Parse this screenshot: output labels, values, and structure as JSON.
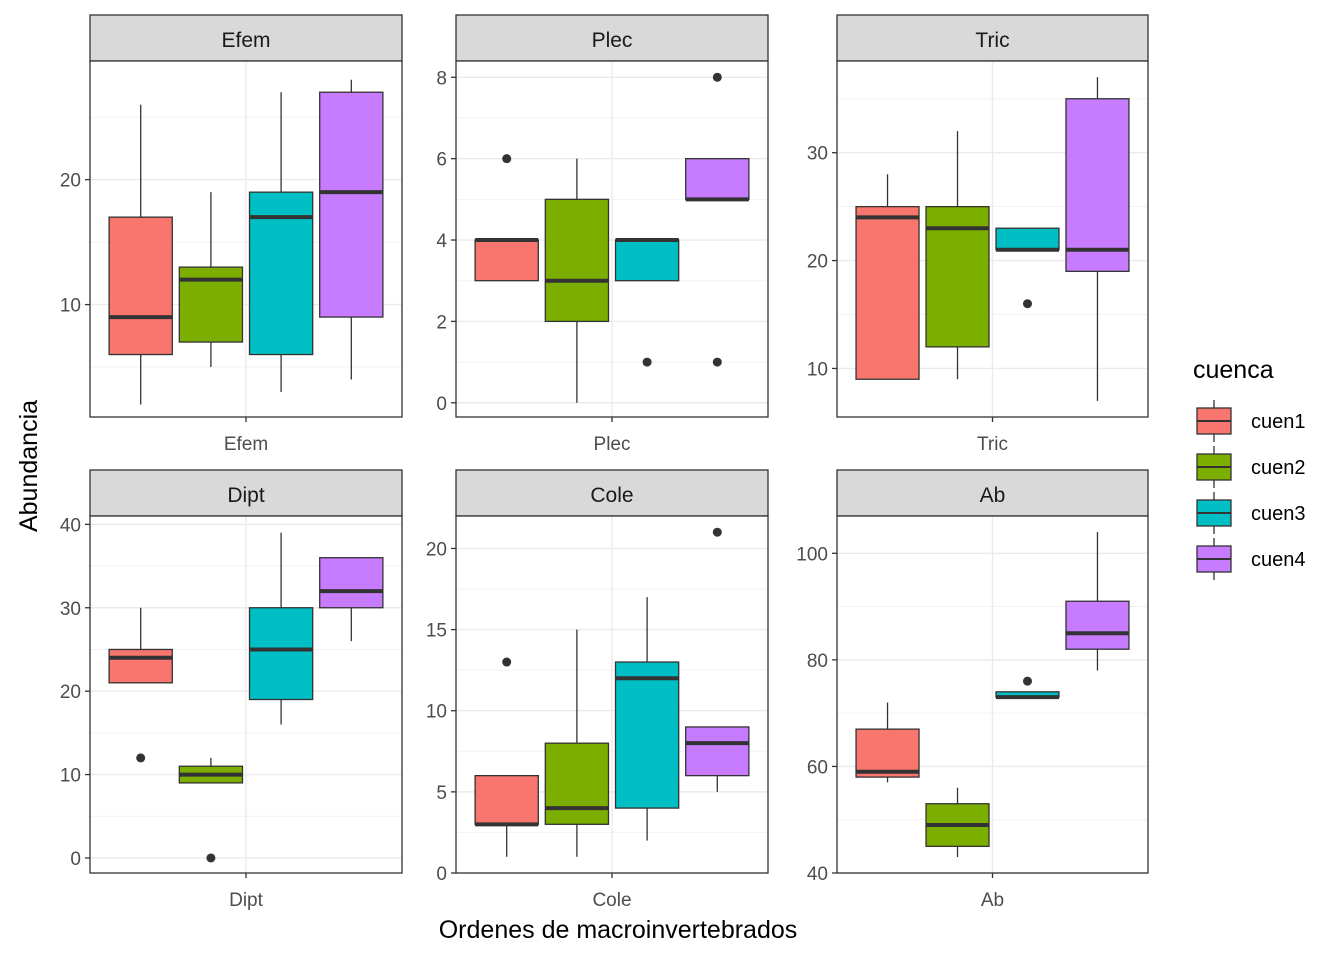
{
  "chart_data": {
    "type": "box",
    "xlabel": "Ordenes de macroinvertebrados",
    "ylabel": "Abundancia",
    "grid": true,
    "legend": {
      "title": "cuenca",
      "position": "right",
      "entries": [
        {
          "name": "cuen1",
          "color": "#F8766D"
        },
        {
          "name": "cuen2",
          "color": "#7CAE00"
        },
        {
          "name": "cuen3",
          "color": "#00BFC4"
        },
        {
          "name": "cuen4",
          "color": "#C77CFF"
        }
      ]
    },
    "panels": [
      {
        "strip": "Efem",
        "xtick": "Efem",
        "ylim": [
          1,
          29.5
        ],
        "yticks": [
          10,
          20
        ],
        "boxes": [
          {
            "series": "cuen1",
            "lower": 2,
            "q1": 6,
            "median": 9,
            "q3": 17,
            "upper": 26,
            "outliers": []
          },
          {
            "series": "cuen2",
            "lower": 5,
            "q1": 7,
            "median": 12,
            "q3": 13,
            "upper": 19,
            "outliers": []
          },
          {
            "series": "cuen3",
            "lower": 3,
            "q1": 6,
            "median": 17,
            "q3": 19,
            "upper": 27,
            "outliers": []
          },
          {
            "series": "cuen4",
            "lower": 4,
            "q1": 9,
            "median": 19,
            "q3": 27,
            "upper": 28,
            "outliers": []
          }
        ]
      },
      {
        "strip": "Plec",
        "xtick": "Plec",
        "ylim": [
          -0.35,
          8.4
        ],
        "yticks": [
          0,
          2,
          4,
          6,
          8
        ],
        "boxes": [
          {
            "series": "cuen1",
            "lower": 3,
            "q1": 3,
            "median": 4,
            "q3": 4,
            "upper": 4,
            "outliers": [
              6
            ]
          },
          {
            "series": "cuen2",
            "lower": 0,
            "q1": 2,
            "median": 3,
            "q3": 5,
            "upper": 6,
            "outliers": []
          },
          {
            "series": "cuen3",
            "lower": 3,
            "q1": 3,
            "median": 4,
            "q3": 4,
            "upper": 4,
            "outliers": [
              1
            ]
          },
          {
            "series": "cuen4",
            "lower": 5,
            "q1": 5,
            "median": 5,
            "q3": 6,
            "upper": 6,
            "outliers": [
              1,
              8
            ]
          }
        ]
      },
      {
        "strip": "Tric",
        "xtick": "Tric",
        "ylim": [
          5.5,
          38.5
        ],
        "yticks": [
          10,
          20,
          30
        ],
        "boxes": [
          {
            "series": "cuen1",
            "lower": 9,
            "q1": 9,
            "median": 24,
            "q3": 25,
            "upper": 28,
            "outliers": []
          },
          {
            "series": "cuen2",
            "lower": 9,
            "q1": 12,
            "median": 23,
            "q3": 25,
            "upper": 32,
            "outliers": []
          },
          {
            "series": "cuen3",
            "lower": 21,
            "q1": 21,
            "median": 21,
            "q3": 23,
            "upper": 23,
            "outliers": [
              16
            ]
          },
          {
            "series": "cuen4",
            "lower": 7,
            "q1": 19,
            "median": 21,
            "q3": 35,
            "upper": 37,
            "outliers": []
          }
        ]
      },
      {
        "strip": "Dipt",
        "xtick": "Dipt",
        "ylim": [
          -1.8,
          41
        ],
        "yticks": [
          0,
          10,
          20,
          30,
          40
        ],
        "boxes": [
          {
            "series": "cuen1",
            "lower": 21,
            "q1": 21,
            "median": 24,
            "q3": 25,
            "upper": 30,
            "outliers": [
              12
            ]
          },
          {
            "series": "cuen2",
            "lower": 9,
            "q1": 9,
            "median": 10,
            "q3": 11,
            "upper": 12,
            "outliers": [
              0
            ]
          },
          {
            "series": "cuen3",
            "lower": 16,
            "q1": 19,
            "median": 25,
            "q3": 30,
            "upper": 39,
            "outliers": []
          },
          {
            "series": "cuen4",
            "lower": 26,
            "q1": 30,
            "median": 32,
            "q3": 36,
            "upper": 36,
            "outliers": []
          }
        ]
      },
      {
        "strip": "Cole",
        "xtick": "Cole",
        "ylim": [
          0,
          22
        ],
        "yticks": [
          0,
          5,
          10,
          15,
          20
        ],
        "boxes": [
          {
            "series": "cuen1",
            "lower": 1,
            "q1": 3,
            "median": 3,
            "q3": 6,
            "upper": 6,
            "outliers": [
              13
            ]
          },
          {
            "series": "cuen2",
            "lower": 1,
            "q1": 3,
            "median": 4,
            "q3": 8,
            "upper": 15,
            "outliers": []
          },
          {
            "series": "cuen3",
            "lower": 2,
            "q1": 4,
            "median": 12,
            "q3": 13,
            "upper": 17,
            "outliers": []
          },
          {
            "series": "cuen4",
            "lower": 5,
            "q1": 6,
            "median": 8,
            "q3": 9,
            "upper": 9,
            "outliers": [
              21
            ]
          }
        ]
      },
      {
        "strip": "Ab",
        "xtick": "Ab",
        "ylim": [
          40,
          107
        ],
        "yticks": [
          40,
          60,
          80,
          100
        ],
        "boxes": [
          {
            "series": "cuen1",
            "lower": 57,
            "q1": 58,
            "median": 59,
            "q3": 67,
            "upper": 72,
            "outliers": []
          },
          {
            "series": "cuen2",
            "lower": 43,
            "q1": 45,
            "median": 49,
            "q3": 53,
            "upper": 56,
            "outliers": []
          },
          {
            "series": "cuen3",
            "lower": 73,
            "q1": 73,
            "median": 73,
            "q3": 74,
            "upper": 74,
            "outliers": [
              76
            ]
          },
          {
            "series": "cuen4",
            "lower": 78,
            "q1": 82,
            "median": 85,
            "q3": 91,
            "upper": 104,
            "outliers": []
          }
        ]
      }
    ]
  }
}
